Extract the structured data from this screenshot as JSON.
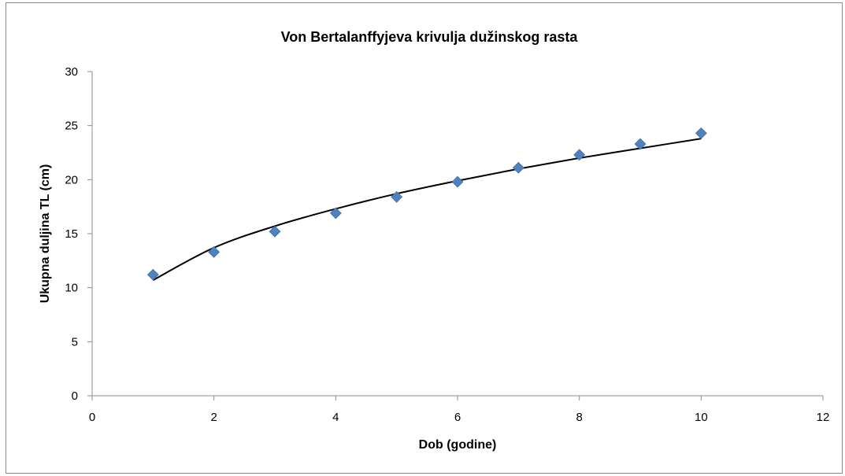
{
  "chart_data": {
    "type": "scatter",
    "title": "Von Bertalanffyjeva krivulja dužinskog rasta",
    "xlabel": "Dob (godine)",
    "ylabel": "Ukupna duljina TL (cm)",
    "xlim": [
      0,
      12
    ],
    "ylim": [
      0,
      30
    ],
    "x_ticks": [
      0,
      2,
      4,
      6,
      8,
      10,
      12
    ],
    "y_ticks": [
      0,
      5,
      10,
      15,
      20,
      25,
      30
    ],
    "grid": false,
    "legend": "none",
    "series": [
      {
        "kind": "points",
        "marker": "diamond",
        "color": "#4f81bd",
        "x": [
          1,
          2,
          3,
          4,
          5,
          6,
          7,
          8,
          9,
          10
        ],
        "y": [
          11.2,
          13.3,
          15.2,
          16.9,
          18.4,
          19.8,
          21.1,
          22.3,
          23.3,
          24.3
        ]
      },
      {
        "kind": "fitted-curve",
        "color": "#000000",
        "x": [
          1,
          2,
          3,
          4,
          5,
          6,
          7,
          8,
          9,
          10
        ],
        "y": [
          10.7,
          13.7,
          15.7,
          17.3,
          18.7,
          19.9,
          21.0,
          22.0,
          22.9,
          23.8
        ]
      }
    ]
  }
}
